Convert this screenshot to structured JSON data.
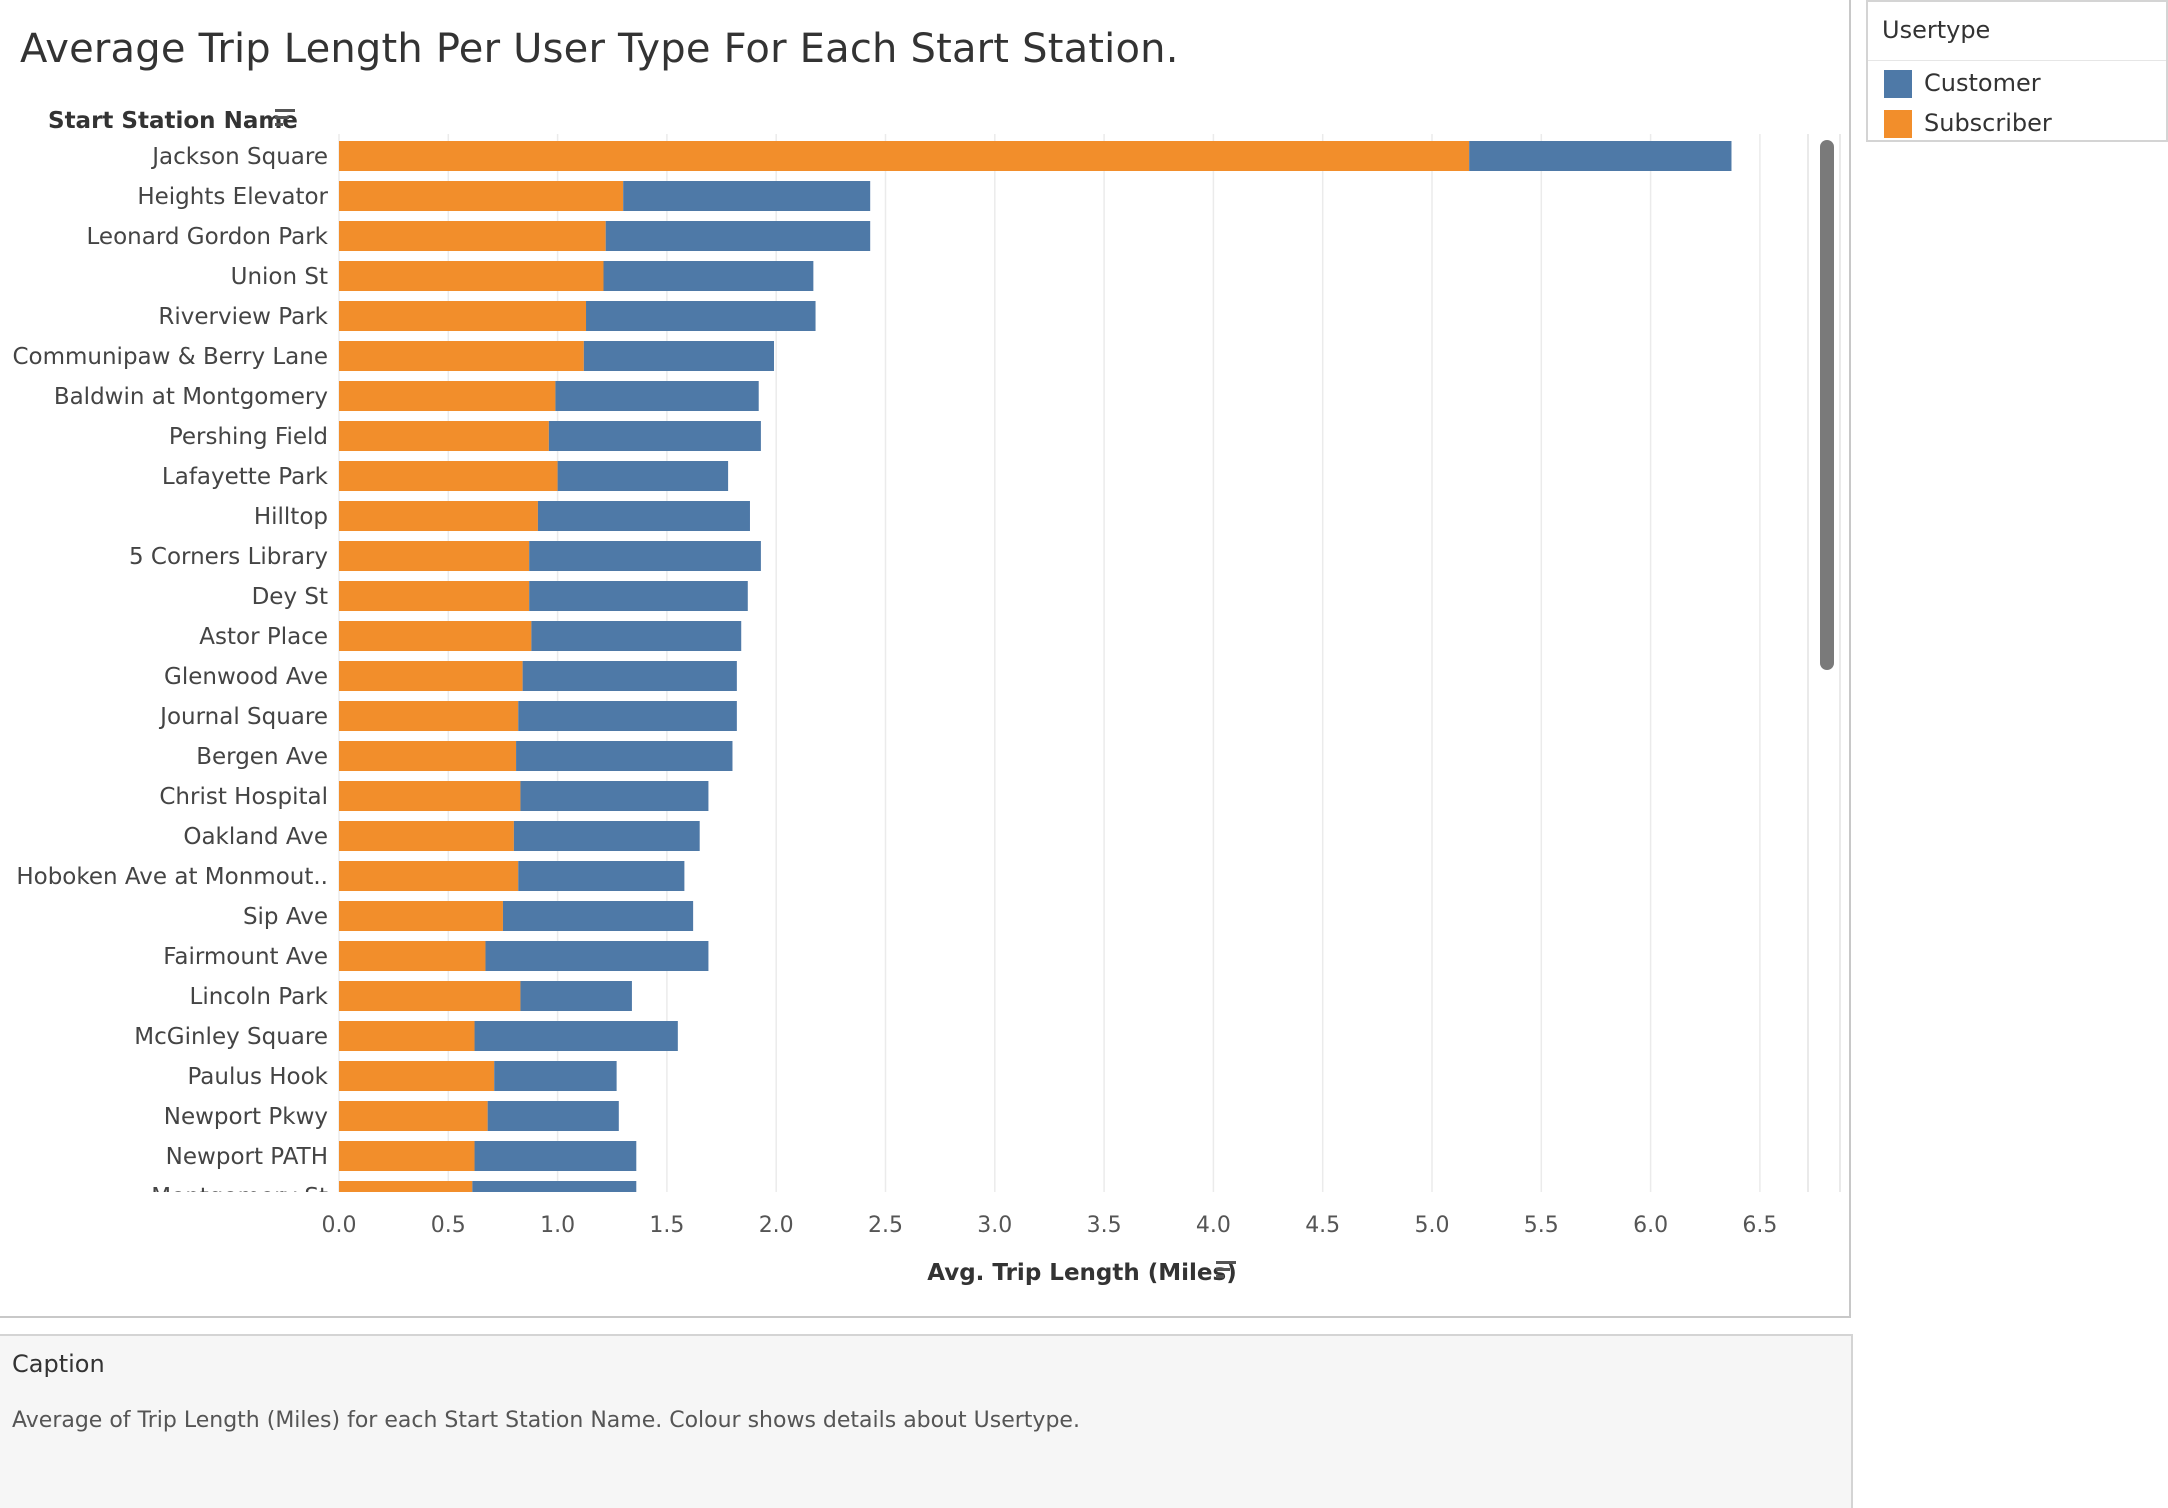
{
  "legend": {
    "title": "Usertype",
    "items": [
      {
        "label": "Customer",
        "color": "#4e79a7"
      },
      {
        "label": "Subscriber",
        "color": "#f28e2b"
      }
    ]
  },
  "caption": {
    "title": "Caption",
    "text": "Average of Trip Length (Miles) for each Start Station Name. Colour shows details about Usertype."
  },
  "chart_data": {
    "type": "bar",
    "orientation": "horizontal",
    "stacked": true,
    "title": "Average Trip Length Per User Type For Each Start Station.",
    "ylabel": "Start Station Name",
    "xlabel": "Avg. Trip Length (Miles)",
    "xlim": [
      0,
      6.7
    ],
    "x_ticks": [
      "0.0",
      "0.5",
      "1.0",
      "1.5",
      "2.0",
      "2.5",
      "3.0",
      "3.5",
      "4.0",
      "4.5",
      "5.0",
      "5.5",
      "6.0",
      "6.5"
    ],
    "grid": "vertical",
    "legend_position": "right",
    "categories": [
      "Jackson Square",
      "Heights Elevator",
      "Leonard Gordon Park",
      "Union St",
      "Riverview Park",
      "Communipaw & Berry Lane",
      "Baldwin at Montgomery",
      "Pershing Field",
      "Lafayette Park",
      "Hilltop",
      "5 Corners Library",
      "Dey St",
      "Astor Place",
      "Glenwood Ave",
      "Journal Square",
      "Bergen Ave",
      "Christ Hospital",
      "Oakland Ave",
      "Hoboken Ave at Monmout..",
      "Sip Ave",
      "Fairmount Ave",
      "Lincoln Park",
      "McGinley Square",
      "Paulus Hook",
      "Newport Pkwy",
      "Newport PATH",
      "Montgomery St"
    ],
    "series": [
      {
        "name": "Subscriber",
        "color": "#f28e2b",
        "values": [
          5.17,
          1.3,
          1.22,
          1.21,
          1.13,
          1.12,
          0.99,
          0.96,
          1.0,
          0.91,
          0.87,
          0.87,
          0.88,
          0.84,
          0.82,
          0.81,
          0.83,
          0.8,
          0.82,
          0.75,
          0.67,
          0.83,
          0.62,
          0.71,
          0.68,
          0.62,
          0.61
        ]
      },
      {
        "name": "Customer",
        "color": "#4e79a7",
        "values": [
          1.2,
          1.13,
          1.21,
          0.96,
          1.05,
          0.87,
          0.93,
          0.97,
          0.78,
          0.97,
          1.06,
          1.0,
          0.96,
          0.98,
          1.0,
          0.99,
          0.86,
          0.85,
          0.76,
          0.87,
          1.02,
          0.51,
          0.93,
          0.56,
          0.6,
          0.74,
          0.75
        ]
      }
    ]
  }
}
